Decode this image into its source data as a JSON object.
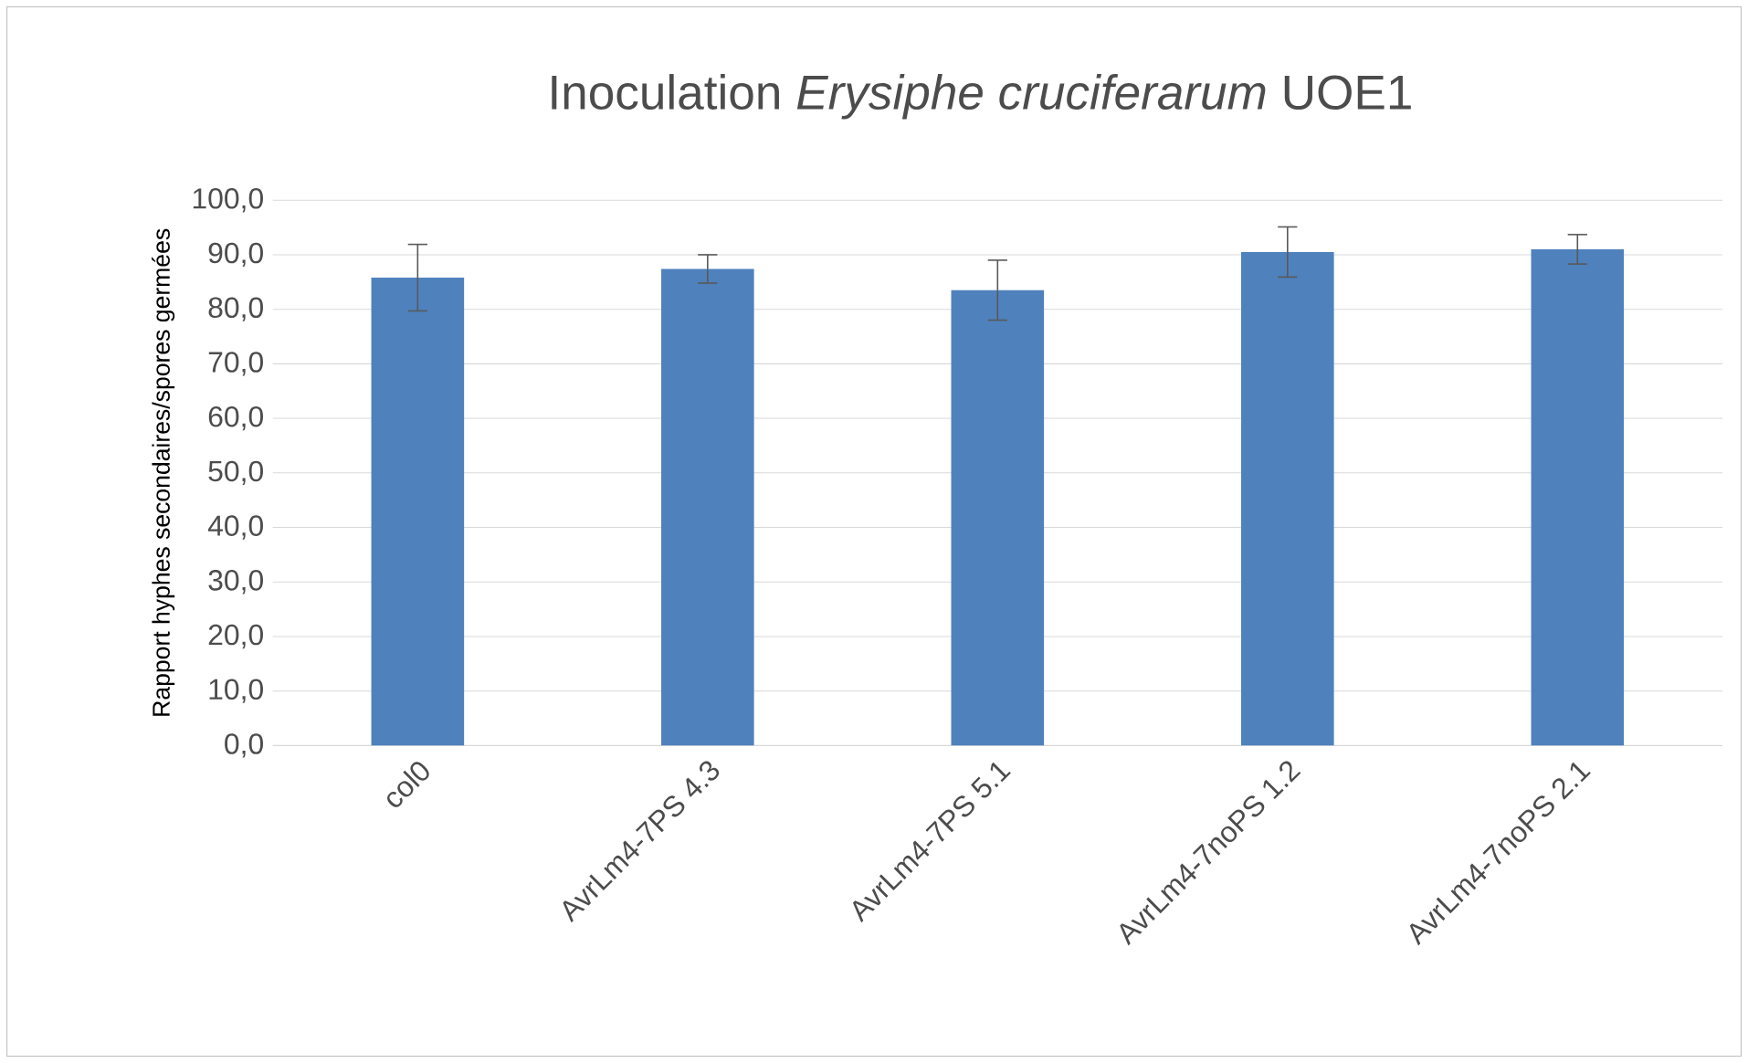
{
  "chart_data": {
    "type": "bar",
    "title": "Inoculation *Erysiphe cruciferarum* UOE1",
    "ylabel": "Rapport hyphes secondaires/spores germées",
    "categories": [
      "col0",
      "AvrLm4-7PS 4.3",
      "AvrLm4-7PS 5.1",
      "AvrLm4-7noPS 1.2",
      "AvrLm4-7noPS 2.1"
    ],
    "values": [
      85.8,
      87.4,
      83.5,
      90.5,
      91.0
    ],
    "errors": [
      6.1,
      2.6,
      5.5,
      4.6,
      2.7
    ],
    "color": "#4f81bd",
    "ylim": [
      0,
      100
    ],
    "yticks": [
      {
        "value": 0,
        "label": "0,0"
      },
      {
        "value": 10,
        "label": "10,0"
      },
      {
        "value": 20,
        "label": "20,0"
      },
      {
        "value": 30,
        "label": "30,0"
      },
      {
        "value": 40,
        "label": "40,0"
      },
      {
        "value": 50,
        "label": "50,0"
      },
      {
        "value": 60,
        "label": "60,0"
      },
      {
        "value": 70,
        "label": "70,0"
      },
      {
        "value": 80,
        "label": "80,0"
      },
      {
        "value": 90,
        "label": "90,0"
      },
      {
        "value": 100,
        "label": "100,0"
      }
    ],
    "grid": "y"
  }
}
